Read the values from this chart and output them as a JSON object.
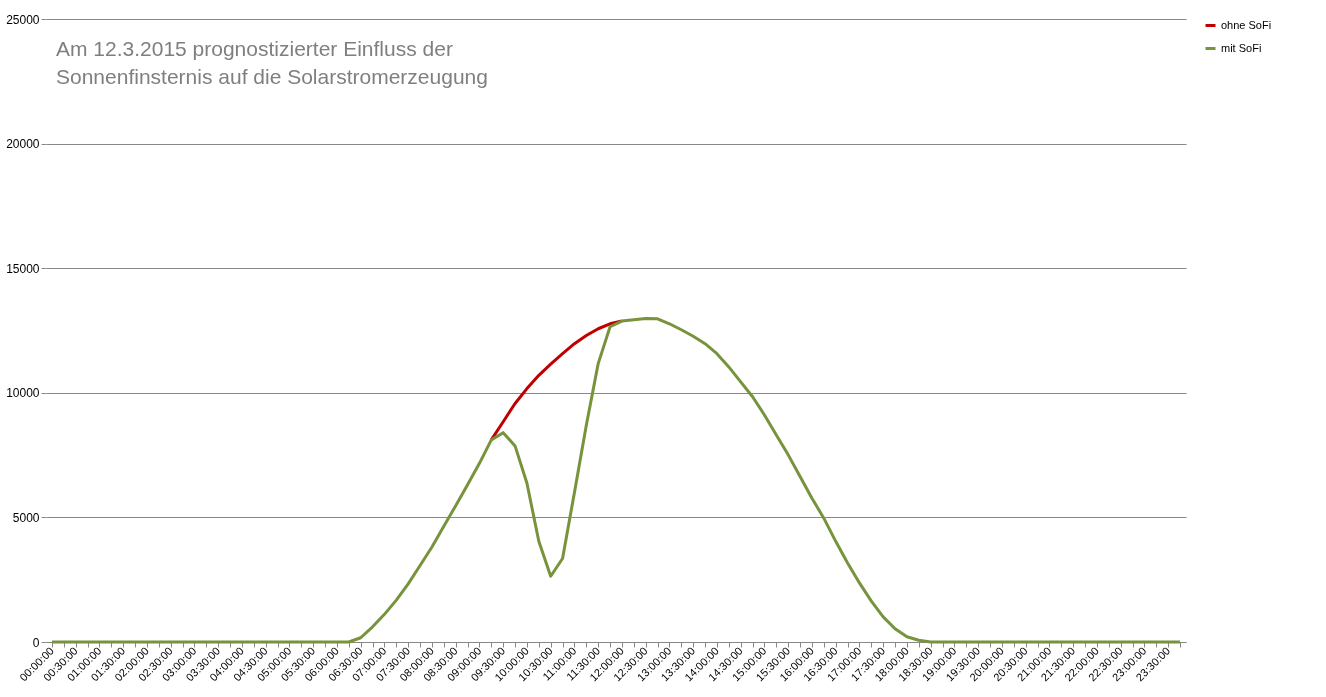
{
  "chart_data": {
    "type": "line",
    "title": "Am 12.3.2015 prognostizierter Einfluss der Sonnenfinsternis auf die Solarstromerzeugung",
    "categories": [
      "00:00:00",
      null,
      "00:30:00",
      null,
      "01:00:00",
      null,
      "01:30:00",
      null,
      "02:00:00",
      null,
      "02:30:00",
      null,
      "03:00:00",
      null,
      "03:30:00",
      null,
      "04:00:00",
      null,
      "04:30:00",
      null,
      "05:00:00",
      null,
      "05:30:00",
      null,
      "06:00:00",
      null,
      "06:30:00",
      null,
      "07:00:00",
      null,
      "07:30:00",
      null,
      "08:00:00",
      null,
      "08:30:00",
      null,
      "09:00:00",
      null,
      "09:30:00",
      null,
      "10:00:00",
      null,
      "10:30:00",
      null,
      "11:00:00",
      null,
      "11:30:00",
      null,
      "12:00:00",
      null,
      "12:30:00",
      null,
      "13:00:00",
      null,
      "13:30:00",
      null,
      "14:00:00",
      null,
      "14:30:00",
      null,
      "15:00:00",
      null,
      "15:30:00",
      null,
      "16:00:00",
      null,
      "16:30:00",
      null,
      "17:00:00",
      null,
      "17:30:00",
      null,
      "18:00:00",
      null,
      "18:30:00",
      null,
      "19:00:00",
      null,
      "19:30:00",
      null,
      "20:00:00",
      null,
      "20:30:00",
      null,
      "21:00:00",
      null,
      "21:30:00",
      null,
      "22:00:00",
      null,
      "22:30:00",
      null,
      "23:00:00",
      null,
      "23:30:00",
      null
    ],
    "series": [
      {
        "name": "ohne SoFi",
        "color": "#c00000",
        "values": [
          null,
          null,
          null,
          null,
          null,
          null,
          null,
          null,
          null,
          null,
          null,
          null,
          null,
          null,
          null,
          null,
          null,
          null,
          null,
          null,
          null,
          null,
          null,
          null,
          null,
          null,
          null,
          null,
          null,
          null,
          null,
          null,
          null,
          null,
          null,
          null,
          null,
          8110,
          8840,
          9570,
          10170,
          10700,
          11150,
          11570,
          11970,
          12300,
          12570,
          12770,
          12880,
          null,
          null,
          null,
          null,
          null,
          null,
          null,
          null,
          null,
          null,
          null,
          null,
          null,
          null,
          null,
          null,
          null,
          null,
          null,
          null,
          null,
          null,
          null,
          null,
          null,
          null,
          null,
          null,
          null,
          null,
          null,
          null,
          null,
          null,
          null,
          null,
          null,
          null,
          null,
          null,
          null,
          null,
          null,
          null,
          null,
          null,
          null
        ]
      },
      {
        "name": "mit SoFi",
        "color": "#77933c",
        "values": [
          0,
          0,
          0,
          0,
          0,
          0,
          0,
          0,
          0,
          0,
          0,
          0,
          0,
          0,
          0,
          0,
          0,
          0,
          0,
          0,
          0,
          0,
          0,
          0,
          0,
          0,
          170,
          610,
          1110,
          1680,
          2330,
          3070,
          3810,
          4640,
          5470,
          6310,
          7170,
          8110,
          8400,
          7870,
          6370,
          4040,
          2640,
          3350,
          6000,
          8700,
          11170,
          12650,
          12880,
          12930,
          12980,
          12970,
          12770,
          12530,
          12270,
          11970,
          11570,
          11040,
          10440,
          9840,
          9110,
          8310,
          7510,
          6640,
          5770,
          4970,
          4040,
          3170,
          2370,
          1640,
          1010,
          530,
          210,
          70,
          0,
          0,
          0,
          0,
          0,
          0,
          0,
          0,
          0,
          0,
          0,
          0,
          0,
          0,
          0,
          0,
          0,
          0,
          0,
          0,
          0,
          0
        ]
      }
    ],
    "ylim": [
      0,
      25000
    ],
    "yticks": [
      0,
      5000,
      10000,
      15000,
      20000,
      25000
    ],
    "grid": "y",
    "legend": "right"
  }
}
